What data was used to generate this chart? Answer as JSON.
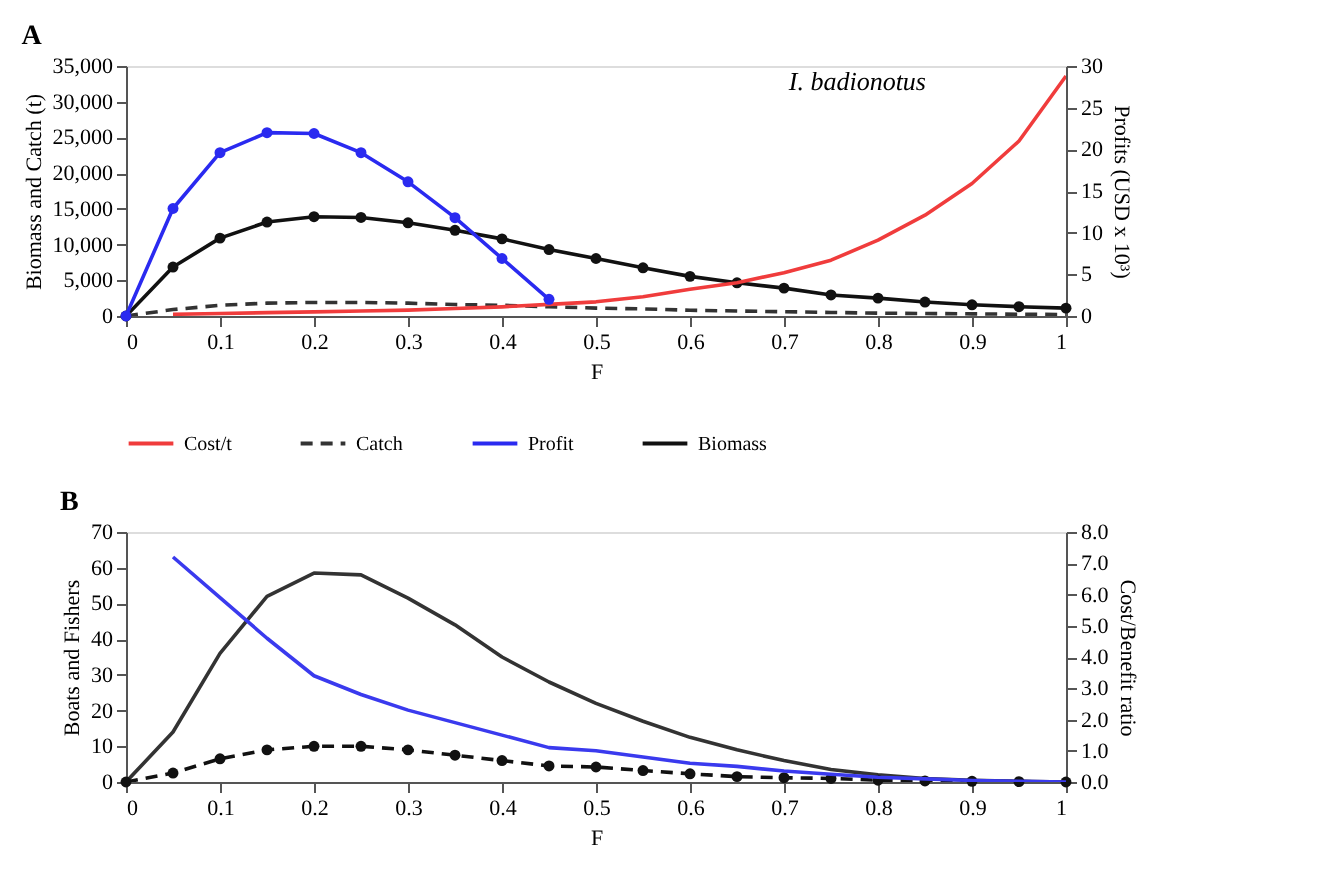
{
  "chart_data": [
    {
      "type": "line",
      "title": "A",
      "annotations": [
        "I. badionotus"
      ],
      "xlabel": "F",
      "ylabel": "Biomass and Catch (t)",
      "y2label": "Profits (USD x 10³)",
      "x": [
        0,
        0.05,
        0.1,
        0.15,
        0.2,
        0.25,
        0.3,
        0.35,
        0.4,
        0.45,
        0.5,
        0.55,
        0.6,
        0.65,
        0.7,
        0.75,
        0.8,
        0.85,
        0.9,
        0.95,
        1
      ],
      "xlim": [
        0,
        1
      ],
      "xticks": [
        0,
        0.1,
        0.2,
        0.3,
        0.4,
        0.5,
        0.6,
        0.7,
        0.8,
        0.9,
        1
      ],
      "ylim": [
        0,
        35000
      ],
      "yticks": [
        {
          "value": 0,
          "label": "0"
        },
        {
          "value": 5000,
          "label": "5,000"
        },
        {
          "value": 10000,
          "label": "10,000"
        },
        {
          "value": 15000,
          "label": "15,000"
        },
        {
          "value": 20000,
          "label": "20,000"
        },
        {
          "value": 25000,
          "label": "25,000"
        },
        {
          "value": 30000,
          "label": "30,000"
        },
        {
          "value": 35000,
          "label": "35,000"
        }
      ],
      "y2lim": [
        0,
        30
      ],
      "y2ticks": [
        0,
        5,
        10,
        15,
        20,
        25,
        30
      ],
      "grid": false,
      "legend": "bottom",
      "series": [
        {
          "name": "Cost/t",
          "color": "#f03c3c",
          "axis": "y2",
          "marker": "none",
          "line_style": "solid",
          "x": [
            0.05,
            0.1,
            0.15,
            0.2,
            0.25,
            0.3,
            0.35,
            0.4,
            0.45,
            0.5,
            0.55,
            0.6,
            0.65,
            0.7,
            0.75,
            0.8,
            0.85,
            0.9,
            0.95,
            1
          ],
          "values": [
            0.2,
            0.3,
            0.4,
            0.5,
            0.6,
            0.7,
            0.9,
            1.1,
            1.4,
            1.7,
            2.3,
            3.2,
            4.0,
            5.2,
            6.7,
            9.1,
            12.1,
            15.9,
            21,
            28.8
          ]
        },
        {
          "name": "Catch",
          "color": "#333333",
          "axis": "y",
          "marker": "none",
          "line_style": "dashed",
          "values": [
            0,
            900,
            1500,
            1800,
            1900,
            1900,
            1800,
            1600,
            1500,
            1300,
            1100,
            1000,
            800,
            700,
            600,
            500,
            400,
            350,
            300,
            250,
            200
          ]
        },
        {
          "name": "Profit",
          "color": "#2a2af0",
          "axis": "y2",
          "marker": "circle",
          "line_style": "solid",
          "x": [
            0,
            0.05,
            0.1,
            0.15,
            0.2,
            0.25,
            0.3,
            0.35,
            0.4,
            0.45
          ],
          "values": [
            0,
            12.9,
            19.6,
            22.0,
            21.9,
            19.6,
            16.1,
            11.8,
            6.9,
            2.0
          ]
        },
        {
          "name": "Biomass",
          "color": "#111111",
          "axis": "y",
          "marker": "circle",
          "line_style": "solid",
          "values": [
            0,
            6850,
            10900,
            13150,
            13900,
            13800,
            13050,
            12000,
            10800,
            9300,
            8050,
            6750,
            5550,
            4650,
            3900,
            2950,
            2500,
            1950,
            1570,
            1300,
            1100
          ]
        }
      ]
    },
    {
      "type": "line",
      "title": "B",
      "xlabel": "F",
      "ylabel": "Boats and Fishers",
      "y2label": "Cost/Benefit ratio",
      "x": [
        0,
        0.05,
        0.1,
        0.15,
        0.2,
        0.25,
        0.3,
        0.35,
        0.4,
        0.45,
        0.5,
        0.55,
        0.6,
        0.65,
        0.7,
        0.75,
        0.8,
        0.85,
        0.9,
        0.95,
        1
      ],
      "xlim": [
        0,
        1
      ],
      "xticks": [
        0,
        0.1,
        0.2,
        0.3,
        0.4,
        0.5,
        0.6,
        0.7,
        0.8,
        0.9,
        1
      ],
      "ylim": [
        0,
        70
      ],
      "yticks": [
        0,
        10,
        20,
        30,
        40,
        50,
        60,
        70
      ],
      "y2lim": [
        0,
        8
      ],
      "y2ticks": [
        {
          "value": 0,
          "label": "0.0"
        },
        {
          "value": 1,
          "label": "1.0"
        },
        {
          "value": 2,
          "label": "2.0"
        },
        {
          "value": 3,
          "label": "3.0"
        },
        {
          "value": 4,
          "label": "4.0"
        },
        {
          "value": 5,
          "label": "5.0"
        },
        {
          "value": 6,
          "label": "6.0"
        },
        {
          "value": 7,
          "label": "7.0"
        },
        {
          "value": 8,
          "label": "8.0"
        }
      ],
      "grid": false,
      "series": [
        {
          "color": "#3a3aee",
          "axis": "y2",
          "marker": "none",
          "line_style": "solid",
          "x": [
            0.05,
            0.1,
            0.15,
            0.2,
            0.25,
            0.3,
            0.35,
            0.4,
            0.45,
            0.5,
            0.55,
            0.6,
            0.65,
            0.7,
            0.75,
            0.8,
            0.85,
            0.9,
            0.95,
            1
          ],
          "values": [
            7.2,
            5.9,
            4.6,
            3.4,
            2.8,
            2.3,
            1.9,
            1.5,
            1.1,
            1.0,
            0.8,
            0.6,
            0.5,
            0.35,
            0.25,
            0.15,
            0.1,
            0.05,
            0.02,
            0
          ]
        },
        {
          "color": "#333333",
          "axis": "y",
          "marker": "none",
          "line_style": "solid",
          "values": [
            0,
            14,
            36,
            52,
            58.5,
            58,
            51.5,
            44,
            35,
            28,
            22,
            17,
            12.5,
            9,
            6,
            3.5,
            2,
            1,
            0.5,
            0.2,
            0
          ]
        },
        {
          "color": "#111111",
          "axis": "y",
          "marker": "circle",
          "line_style": "dashed",
          "values": [
            0,
            2.5,
            6.5,
            9,
            10,
            10,
            9,
            7.5,
            6,
            4.5,
            4.2,
            3.2,
            2.3,
            1.5,
            1.2,
            1,
            0.5,
            0.3,
            0.2,
            0.1,
            0
          ]
        }
      ]
    }
  ]
}
